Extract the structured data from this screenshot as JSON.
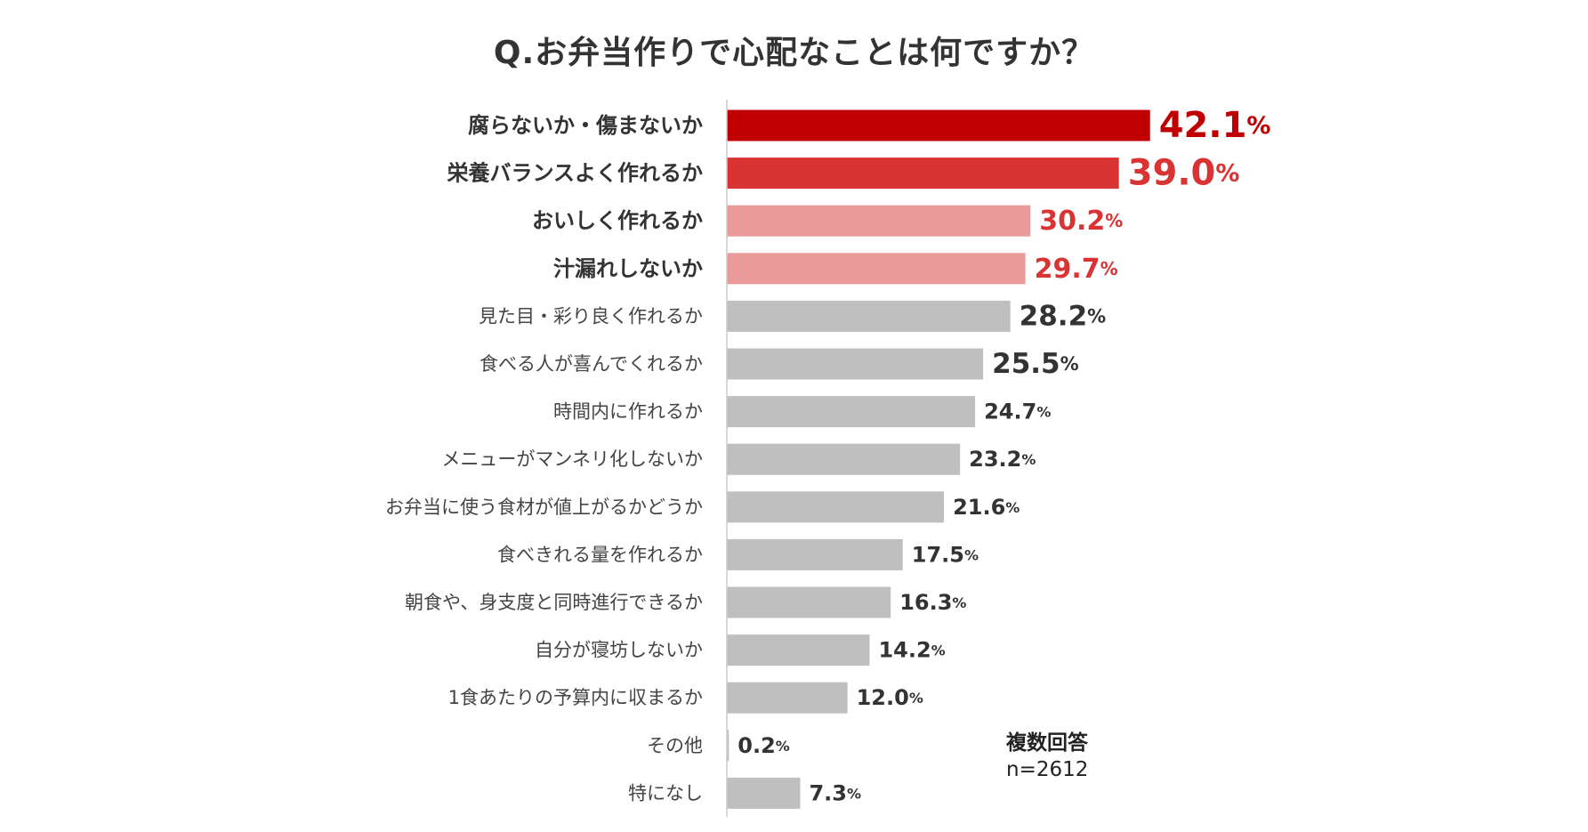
{
  "chart_data": {
    "type": "bar",
    "orientation": "horizontal",
    "title": "Q.お弁当作りで心配なことは何ですか？",
    "unit": "%",
    "xlim": [
      0,
      50
    ],
    "categories": [
      "腐らないか・傷まないか",
      "栄養バランスよく作れるか",
      "おいしく作れるか",
      "汁漏れしないか",
      "見た目・彩り良く作れるか",
      "食べる人が喜んでくれるか",
      "時間内に作れるか",
      "メニューがマンネリ化しないか",
      "お弁当に使う食材が値上がるかどうか",
      "食べきれる量を作れるか",
      "朝食や、身支度と同時進行できるか",
      "自分が寝坊しないか",
      "1食あたりの予算内に収まるか",
      "その他",
      "特になし"
    ],
    "values": [
      42.1,
      39.0,
      30.2,
      29.7,
      28.2,
      25.5,
      24.7,
      23.2,
      21.6,
      17.5,
      16.3,
      14.2,
      12.0,
      0.2,
      7.3
    ],
    "value_labels": [
      "42.1",
      "39.0",
      "30.2",
      "29.7",
      "28.2",
      "25.5",
      "24.7",
      "23.2",
      "21.6",
      "17.5",
      "16.3",
      "14.2",
      "12.0",
      "0.2",
      "7.3"
    ],
    "bar_colors": [
      "#c00000",
      "#d93333",
      "#eb9a9a",
      "#eb9a9a",
      "#bfbfbf",
      "#bfbfbf",
      "#bfbfbf",
      "#bfbfbf",
      "#bfbfbf",
      "#bfbfbf",
      "#bfbfbf",
      "#bfbfbf",
      "#bfbfbf",
      "#bfbfbf",
      "#bfbfbf"
    ],
    "label_colors": [
      "#c00000",
      "#d93333",
      "#d93333",
      "#d93333",
      "#333333",
      "#333333",
      "#333333",
      "#333333",
      "#333333",
      "#333333",
      "#333333",
      "#333333",
      "#333333",
      "#333333",
      "#333333"
    ],
    "highlighted": [
      true,
      true,
      true,
      true,
      false,
      false,
      false,
      false,
      false,
      false,
      false,
      false,
      false,
      false,
      false
    ],
    "axis_color": "#cccccc"
  },
  "note": {
    "title": "複数回答",
    "sample": "n=2612"
  }
}
